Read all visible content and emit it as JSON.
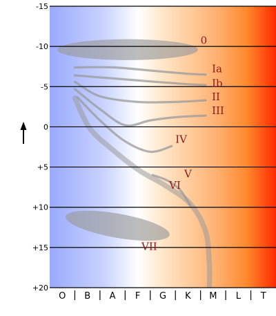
{
  "chart_data": {
    "type": "diagram",
    "title": "",
    "xlabel": "",
    "ylabel": "",
    "y_axis": {
      "range": [
        -15,
        20
      ],
      "inverted": true,
      "ticks": [
        "-15",
        "-10",
        "-5",
        "0",
        "+5",
        "+10",
        "+15",
        "+20"
      ]
    },
    "x_axis": {
      "categories": [
        "O",
        "B",
        "A",
        "F",
        "G",
        "K",
        "M",
        "L",
        "T"
      ]
    },
    "grid": true,
    "background_gradient": [
      "#99aaff",
      "#c9d3ff",
      "#ffffff",
      "#ffe6c8",
      "#ffb070",
      "#ff8a2e",
      "#ff2a00"
    ],
    "band_color": "#9a9a9a",
    "label_color": "#8b1a1a",
    "arrow_icon": "up-arrow-icon",
    "luminosity_classes": [
      {
        "label": "0",
        "x": 6.0,
        "y": -10.3
      },
      {
        "label": "Ia",
        "x": 6.45,
        "y": -6.8
      },
      {
        "label": "Ib",
        "x": 6.45,
        "y": -5.0
      },
      {
        "label": "II",
        "x": 6.45,
        "y": -3.3
      },
      {
        "label": "III",
        "x": 6.45,
        "y": -1.6
      },
      {
        "label": "IV",
        "x": 5.0,
        "y": 2.0
      },
      {
        "label": "V",
        "x": 5.35,
        "y": 6.3
      },
      {
        "label": "VI",
        "x": 4.75,
        "y": 7.7
      },
      {
        "label": "VII",
        "x": 3.65,
        "y": 15.3
      }
    ],
    "regions": [
      {
        "name": "0",
        "shape": "ellipse",
        "cx": 3.1,
        "cy": -9.6,
        "rx": 2.8,
        "ry": 1.3
      },
      {
        "name": "VII",
        "shape": "ellipse",
        "cx": 2.7,
        "cy": 12.3,
        "rx": 2.1,
        "ry": 1.5,
        "rotate": 10
      },
      {
        "name": "Ia",
        "shape": "curve",
        "points": [
          [
            1.0,
            -7.4
          ],
          [
            2.5,
            -7.4
          ],
          [
            4.0,
            -7.0
          ],
          [
            5.5,
            -6.6
          ],
          [
            6.2,
            -6.5
          ]
        ]
      },
      {
        "name": "Ib",
        "shape": "curve",
        "points": [
          [
            1.0,
            -6.4
          ],
          [
            2.6,
            -6.0
          ],
          [
            4.2,
            -5.6
          ],
          [
            5.5,
            -5.3
          ],
          [
            6.2,
            -5.2
          ]
        ]
      },
      {
        "name": "II",
        "shape": "curve",
        "points": [
          [
            1.0,
            -5.6
          ],
          [
            2.0,
            -3.8
          ],
          [
            3.5,
            -3.1
          ],
          [
            5.0,
            -3.1
          ],
          [
            6.2,
            -3.3
          ]
        ]
      },
      {
        "name": "III",
        "shape": "curve",
        "points": [
          [
            1.0,
            -4.7
          ],
          [
            2.0,
            -2.2
          ],
          [
            3.0,
            -0.2
          ],
          [
            4.0,
            -0.8
          ],
          [
            5.0,
            -1.2
          ],
          [
            6.2,
            -1.4
          ]
        ]
      },
      {
        "name": "IV",
        "shape": "curve",
        "points": [
          [
            1.1,
            -3.7
          ],
          [
            2.0,
            -0.8
          ],
          [
            3.0,
            1.8
          ],
          [
            4.0,
            3.1
          ],
          [
            4.85,
            2.4
          ]
        ]
      },
      {
        "name": "V",
        "shape": "band",
        "width": 3.4,
        "points": [
          [
            1.0,
            -3.6
          ],
          [
            1.6,
            0.2
          ],
          [
            2.6,
            3.1
          ],
          [
            3.6,
            5.5
          ],
          [
            4.6,
            7.3
          ],
          [
            5.6,
            9.6
          ],
          [
            6.2,
            13.0
          ],
          [
            6.35,
            17.0
          ],
          [
            6.35,
            20.0
          ]
        ]
      },
      {
        "name": "VI",
        "shape": "curve",
        "points": [
          [
            4.1,
            6.0
          ],
          [
            4.7,
            6.7
          ],
          [
            5.2,
            7.9
          ],
          [
            5.6,
            9.8
          ]
        ]
      }
    ]
  }
}
